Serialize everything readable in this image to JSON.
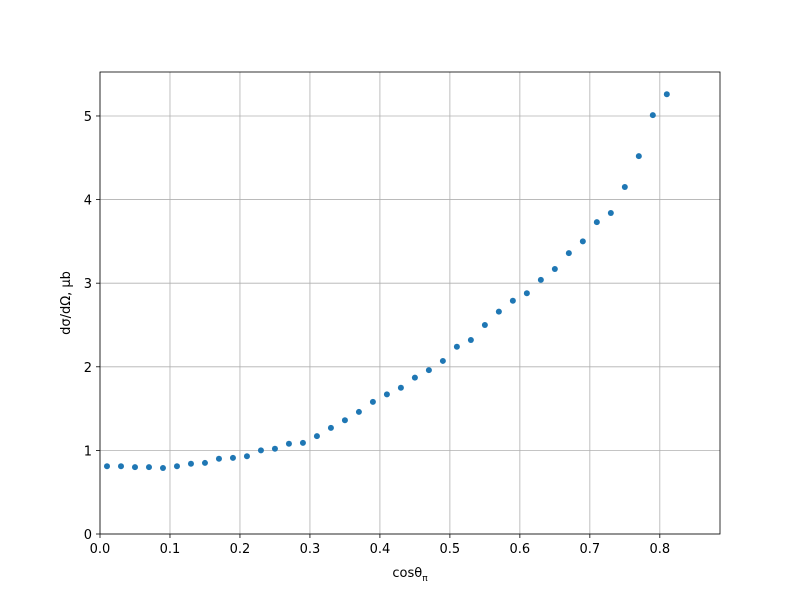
{
  "chart_data": {
    "type": "scatter",
    "x_label": {
      "main": "cosθ",
      "sub": "π"
    },
    "y_label": "dσ/dΩ, μb",
    "color": "#1f77b4",
    "grid": true,
    "x": [
      0.01,
      0.03,
      0.05,
      0.07,
      0.09,
      0.11,
      0.13,
      0.15,
      0.17,
      0.19,
      0.21,
      0.23,
      0.25,
      0.27,
      0.29,
      0.31,
      0.33,
      0.35,
      0.37,
      0.39,
      0.41,
      0.43,
      0.45,
      0.47,
      0.49,
      0.51,
      0.53,
      0.55,
      0.57,
      0.59,
      0.61,
      0.63,
      0.65,
      0.67,
      0.69,
      0.71,
      0.73,
      0.75,
      0.77,
      0.79,
      0.81
    ],
    "values": [
      0.81,
      0.81,
      0.8,
      0.8,
      0.79,
      0.81,
      0.84,
      0.85,
      0.9,
      0.91,
      0.93,
      1.0,
      1.02,
      1.08,
      1.09,
      1.17,
      1.27,
      1.36,
      1.46,
      1.58,
      1.67,
      1.75,
      1.87,
      1.96,
      2.07,
      2.24,
      2.32,
      2.5,
      2.66,
      2.79,
      2.88,
      3.04,
      3.17,
      3.36,
      3.5,
      3.73,
      3.84,
      4.15,
      4.52,
      5.01,
      5.26
    ],
    "xlim": [
      0,
      0.886
    ],
    "ylim": [
      0,
      5.526
    ],
    "xticks": [
      {
        "value": 0,
        "label": "0.0"
      },
      0.1,
      0.2,
      0.3,
      0.4,
      0.5,
      0.6,
      0.7,
      0.8
    ],
    "yticks": [
      0,
      1,
      2,
      3,
      4,
      5
    ]
  }
}
